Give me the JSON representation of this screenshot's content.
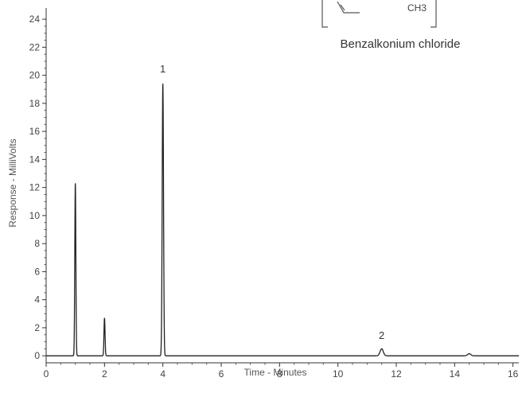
{
  "chart_data": {
    "type": "line",
    "title": "",
    "xlabel": "Time - Minutes",
    "ylabel": "Response - MilliVolts",
    "xlim": [
      0,
      16.2
    ],
    "ylim": [
      -0.5,
      24.8
    ],
    "xticks": [
      "0",
      "2",
      "4",
      "6",
      "8",
      "10",
      "12",
      "14",
      "16"
    ],
    "yticks": [
      "0",
      "2",
      "4",
      "6",
      "8",
      "10",
      "12",
      "14",
      "16",
      "18",
      "20",
      "22",
      "24"
    ],
    "grid": false,
    "series": [
      {
        "peaks": [
          {
            "time": 1.0,
            "height": 12.3,
            "width": 0.04
          },
          {
            "time": 2.0,
            "height": 2.7,
            "width": 0.04
          },
          {
            "time": 4.0,
            "height": 19.4,
            "width": 0.05
          },
          {
            "time": 11.5,
            "height": 0.5,
            "width": 0.12
          },
          {
            "time": 14.5,
            "height": 0.15,
            "width": 0.12
          }
        ],
        "color": "#222222"
      }
    ],
    "annotations": [
      {
        "text": "1",
        "x": 4.0,
        "y": 20.2
      },
      {
        "text": "2",
        "x": 11.5,
        "y": 1.2
      }
    ],
    "compound_label": "Benzalkonium chloride",
    "structure_subscript": "CH3"
  }
}
